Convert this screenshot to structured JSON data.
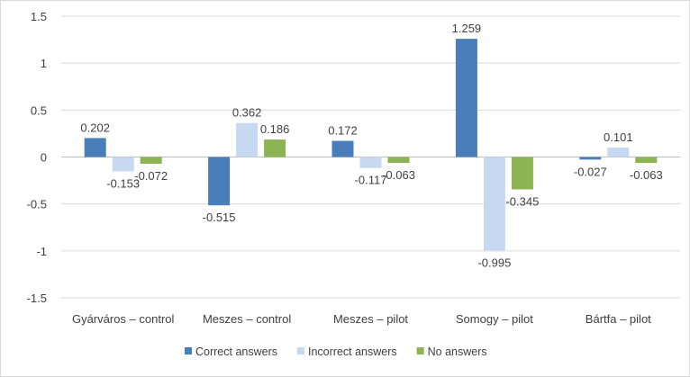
{
  "chart_data": {
    "type": "bar",
    "title": "",
    "xlabel": "",
    "ylabel": "",
    "ylim": [
      -1.5,
      1.5
    ],
    "yticks": [
      1.5,
      1,
      0.5,
      0,
      -0.5,
      -1,
      -1.5
    ],
    "ytick_labels": [
      "1.5",
      "1",
      "0.5",
      "0",
      "-0.5",
      "-1",
      "-1.5"
    ],
    "grid": true,
    "legend_position": "bottom",
    "categories": [
      "Gyárváros – control",
      "Meszes – control",
      "Meszes – pilot",
      "Somogy – pilot",
      "Bártfa – pilot"
    ],
    "series": [
      {
        "name": "Correct answers",
        "color": "#4a7ebb",
        "values": [
          0.202,
          -0.515,
          0.172,
          1.259,
          -0.027
        ],
        "labels": [
          "0.202",
          "-0.515",
          "0.172",
          "1.259",
          "-0.027"
        ]
      },
      {
        "name": "Incorrect answers",
        "color": "#c6d9f1",
        "values": [
          -0.153,
          0.362,
          -0.117,
          -0.995,
          0.101
        ],
        "labels": [
          "-0.153",
          "0.362",
          "-0.117",
          "-0.995",
          "0.101"
        ]
      },
      {
        "name": "No answers",
        "color": "#8cb453",
        "values": [
          -0.072,
          0.186,
          -0.063,
          -0.345,
          -0.063
        ],
        "labels": [
          "-0.072",
          "0.186",
          "-0.063",
          "-0.345",
          "-0.063"
        ]
      }
    ]
  }
}
